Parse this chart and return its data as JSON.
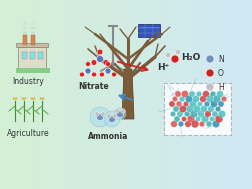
{
  "bg_color_left": "#d4f0d4",
  "bg_color_right": "#d0e8f5",
  "title": "",
  "elements": {
    "industry_label": "Industry",
    "agriculture_label": "Agriculture",
    "nitrate_label": "Nitrate",
    "ammonia_label": "Ammonia",
    "h2o_label": "H₂O",
    "hplus_label": "H⁺",
    "legend_N": "N",
    "legend_O": "O",
    "legend_H": "H"
  },
  "colors": {
    "N_color": "#7090c0",
    "O_color": "#cc2222",
    "H_color": "#c0c0c0",
    "tree_color": "#7a5c3a",
    "nitrate_N": "#5577bb",
    "nitrate_O": "#dd2222",
    "ammonia_bubble": "#aaddee",
    "arrow_color": "#cc2222",
    "arrow2_color": "#4488cc",
    "solar_blue": "#3366cc",
    "catalyst_teal": "#44aaaa"
  },
  "font_sizes": {
    "label": 5.5,
    "molecule": 6.5,
    "legend": 5.5
  }
}
